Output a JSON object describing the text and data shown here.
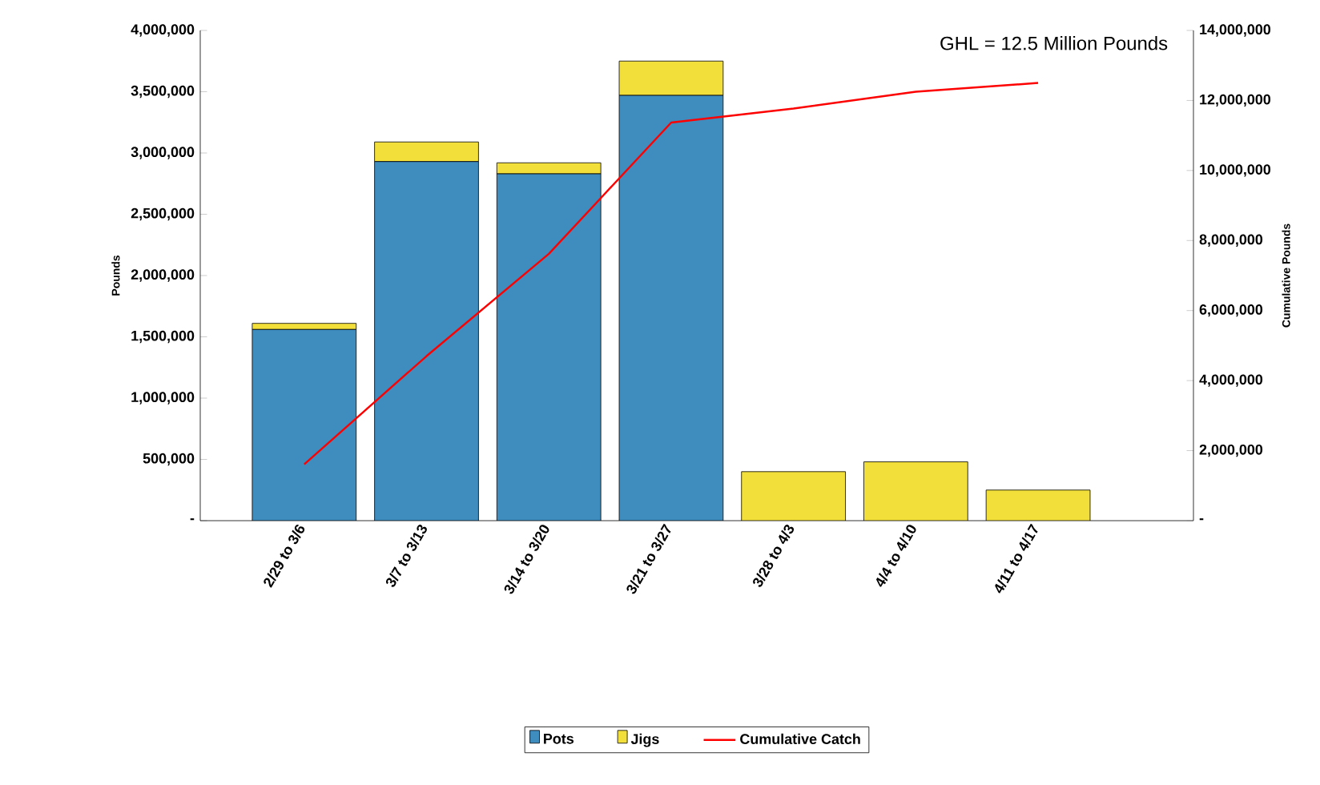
{
  "chart_data": {
    "type": "bar",
    "stacked": true,
    "ylabel": "Pounds",
    "y2label": "Cumulative Pounds",
    "annotations": [
      "GHL = 12.5 Million Pounds"
    ],
    "categories": [
      "2/29 to 3/6",
      "3/7 to 3/13",
      "3/14 to 3/20",
      "3/21 to 3/27",
      "3/28 to 4/3",
      "4/4 to 4/10",
      "4/11 to 4/17"
    ],
    "series": [
      {
        "name": "Pots",
        "color": "#3f8cbf",
        "values": [
          1560000,
          2930000,
          2830000,
          3470000,
          0,
          0,
          0
        ]
      },
      {
        "name": "Jigs",
        "color": "#f2df3a",
        "values": [
          50000,
          160000,
          90000,
          280000,
          400000,
          480000,
          250000
        ]
      },
      {
        "name": "Cumulative Catch",
        "type": "line",
        "axis": "y2",
        "color": "#ff0000",
        "values": [
          1610000,
          4700000,
          7620000,
          11370000,
          11770000,
          12250000,
          12500000
        ]
      }
    ],
    "ylim": [
      0,
      4000000
    ],
    "yticks": [
      {
        "value": 0,
        "label": "-"
      },
      {
        "value": 500000,
        "label": "500,000"
      },
      {
        "value": 1000000,
        "label": "1,000,000"
      },
      {
        "value": 1500000,
        "label": "1,500,000"
      },
      {
        "value": 2000000,
        "label": "2,000,000"
      },
      {
        "value": 2500000,
        "label": "2,500,000"
      },
      {
        "value": 3000000,
        "label": "3,000,000"
      },
      {
        "value": 3500000,
        "label": "3,500,000"
      },
      {
        "value": 4000000,
        "label": "4,000,000"
      }
    ],
    "y2lim": [
      0,
      14000000
    ],
    "y2ticks": [
      {
        "value": 0,
        "label": "-"
      },
      {
        "value": 2000000,
        "label": "2,000,000"
      },
      {
        "value": 4000000,
        "label": "4,000,000"
      },
      {
        "value": 6000000,
        "label": "6,000,000"
      },
      {
        "value": 8000000,
        "label": "8,000,000"
      },
      {
        "value": 10000000,
        "label": "10,000,000"
      },
      {
        "value": 12000000,
        "label": "12,000,000"
      },
      {
        "value": 14000000,
        "label": "14,000,000"
      }
    ],
    "legend": "bottom",
    "grid": false
  }
}
